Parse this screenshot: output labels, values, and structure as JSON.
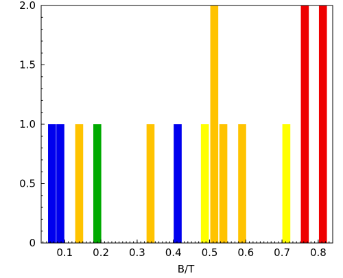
{
  "chart_data": {
    "type": "bar",
    "title": "",
    "xlabel": "B/T",
    "ylabel": "",
    "xlim": [
      0.035,
      0.84
    ],
    "ylim": [
      0,
      2.0
    ],
    "grid": false,
    "legend": false,
    "xticks": [
      "0.1",
      "0.2",
      "0.3",
      "0.4",
      "0.5",
      "0.6",
      "0.7",
      "0.8"
    ],
    "yticks": [
      "0",
      "0.5",
      "1.0",
      "1.5",
      "2.0"
    ],
    "bar_width": 0.022,
    "bars": [
      {
        "x": 0.065,
        "value": 1,
        "color": "#0000ee"
      },
      {
        "x": 0.088,
        "value": 1,
        "color": "#0000ee"
      },
      {
        "x": 0.14,
        "value": 1,
        "color": "#ffc300"
      },
      {
        "x": 0.19,
        "value": 1,
        "color": "#00aa00"
      },
      {
        "x": 0.337,
        "value": 1,
        "color": "#ffc300"
      },
      {
        "x": 0.412,
        "value": 1,
        "color": "#0000ee"
      },
      {
        "x": 0.487,
        "value": 1,
        "color": "#ffff00"
      },
      {
        "x": 0.513,
        "value": 2,
        "color": "#ffc300"
      },
      {
        "x": 0.538,
        "value": 1,
        "color": "#ffc300"
      },
      {
        "x": 0.59,
        "value": 1,
        "color": "#ffc300"
      },
      {
        "x": 0.712,
        "value": 1,
        "color": "#ffff00"
      },
      {
        "x": 0.763,
        "value": 2,
        "color": "#ee0000"
      },
      {
        "x": 0.813,
        "value": 2,
        "color": "#ee0000"
      }
    ]
  }
}
